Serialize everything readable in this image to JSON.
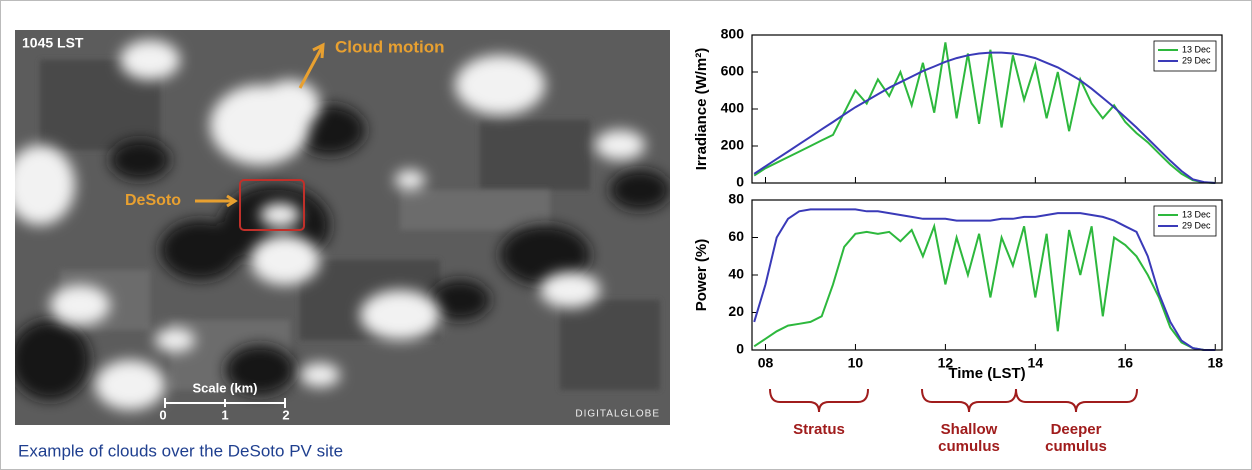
{
  "image": {
    "time_label": "1045 LST",
    "motion_label": "Cloud motion",
    "site_label": "DeSoto",
    "scale_title": "Scale (km)",
    "scale_ticks": [
      "0",
      "1",
      "2"
    ],
    "credit": "DIGITALGLOBE"
  },
  "caption": "Example of clouds over the DeSoto PV site",
  "annotations": [
    {
      "lines": [
        "Stratus"
      ]
    },
    {
      "lines": [
        "Shallow",
        "cumulus"
      ]
    },
    {
      "lines": [
        "Deeper",
        "cumulus"
      ]
    }
  ],
  "chart_data": [
    {
      "type": "line",
      "ylabel": "Irradiance (W/m²)",
      "xlim": [
        7.7,
        18.15
      ],
      "ylim": [
        0,
        800
      ],
      "yticks": [
        0,
        200,
        400,
        600,
        800
      ],
      "legend": "upper right",
      "x": [
        7.75,
        8,
        8.25,
        8.5,
        8.75,
        9,
        9.25,
        9.5,
        9.75,
        10,
        10.25,
        10.5,
        10.75,
        11,
        11.25,
        11.5,
        11.75,
        12,
        12.25,
        12.5,
        12.75,
        13,
        13.25,
        13.5,
        13.75,
        14,
        14.25,
        14.5,
        14.75,
        15,
        15.25,
        15.5,
        15.75,
        16,
        16.25,
        16.5,
        16.75,
        17,
        17.25,
        17.5,
        17.75,
        18
      ],
      "series": [
        {
          "name": "13 Dec",
          "color": "#2db83d",
          "values": [
            40,
            80,
            110,
            140,
            170,
            200,
            230,
            260,
            380,
            500,
            430,
            560,
            470,
            600,
            420,
            650,
            380,
            760,
            350,
            700,
            320,
            720,
            300,
            690,
            450,
            640,
            350,
            600,
            280,
            560,
            430,
            350,
            420,
            330,
            270,
            220,
            160,
            100,
            50,
            15,
            3,
            0
          ]
        },
        {
          "name": "29 Dec",
          "color": "#3a3ab8",
          "values": [
            50,
            90,
            130,
            170,
            210,
            250,
            290,
            330,
            370,
            410,
            445,
            480,
            515,
            545,
            575,
            605,
            630,
            655,
            675,
            690,
            700,
            705,
            705,
            700,
            690,
            675,
            650,
            625,
            590,
            555,
            510,
            460,
            410,
            355,
            300,
            240,
            180,
            120,
            65,
            20,
            5,
            0
          ]
        }
      ]
    },
    {
      "type": "line",
      "ylabel": "Power (%)",
      "xlabel": "Time (LST)",
      "xlim": [
        7.7,
        18.15
      ],
      "ylim": [
        0,
        80
      ],
      "yticks": [
        0,
        20,
        40,
        60,
        80
      ],
      "legend": "upper right",
      "xticks": [
        {
          "value": 8,
          "label": "08"
        },
        10,
        12,
        14,
        16,
        18
      ],
      "x": [
        7.75,
        8,
        8.25,
        8.5,
        8.75,
        9,
        9.25,
        9.5,
        9.75,
        10,
        10.25,
        10.5,
        10.75,
        11,
        11.25,
        11.5,
        11.75,
        12,
        12.25,
        12.5,
        12.75,
        13,
        13.25,
        13.5,
        13.75,
        14,
        14.25,
        14.5,
        14.75,
        15,
        15.25,
        15.5,
        15.75,
        16,
        16.25,
        16.5,
        16.75,
        17,
        17.25,
        17.5,
        17.75,
        18
      ],
      "series": [
        {
          "name": "13 Dec",
          "color": "#2db83d",
          "values": [
            2,
            6,
            10,
            13,
            14,
            15,
            18,
            35,
            55,
            62,
            63,
            62,
            63,
            58,
            64,
            50,
            66,
            35,
            60,
            40,
            62,
            28,
            60,
            45,
            66,
            28,
            62,
            10,
            64,
            40,
            66,
            18,
            60,
            56,
            50,
            40,
            28,
            12,
            4,
            1,
            0,
            0
          ]
        },
        {
          "name": "29 Dec",
          "color": "#3a3ab8",
          "values": [
            15,
            35,
            60,
            70,
            74,
            75,
            75,
            75,
            75,
            75,
            74,
            74,
            73,
            72,
            71,
            70,
            70,
            70,
            69,
            69,
            69,
            69,
            70,
            70,
            71,
            71,
            72,
            73,
            73,
            73,
            72,
            71,
            69,
            66,
            63,
            50,
            30,
            15,
            5,
            1,
            0,
            0
          ]
        }
      ]
    }
  ]
}
